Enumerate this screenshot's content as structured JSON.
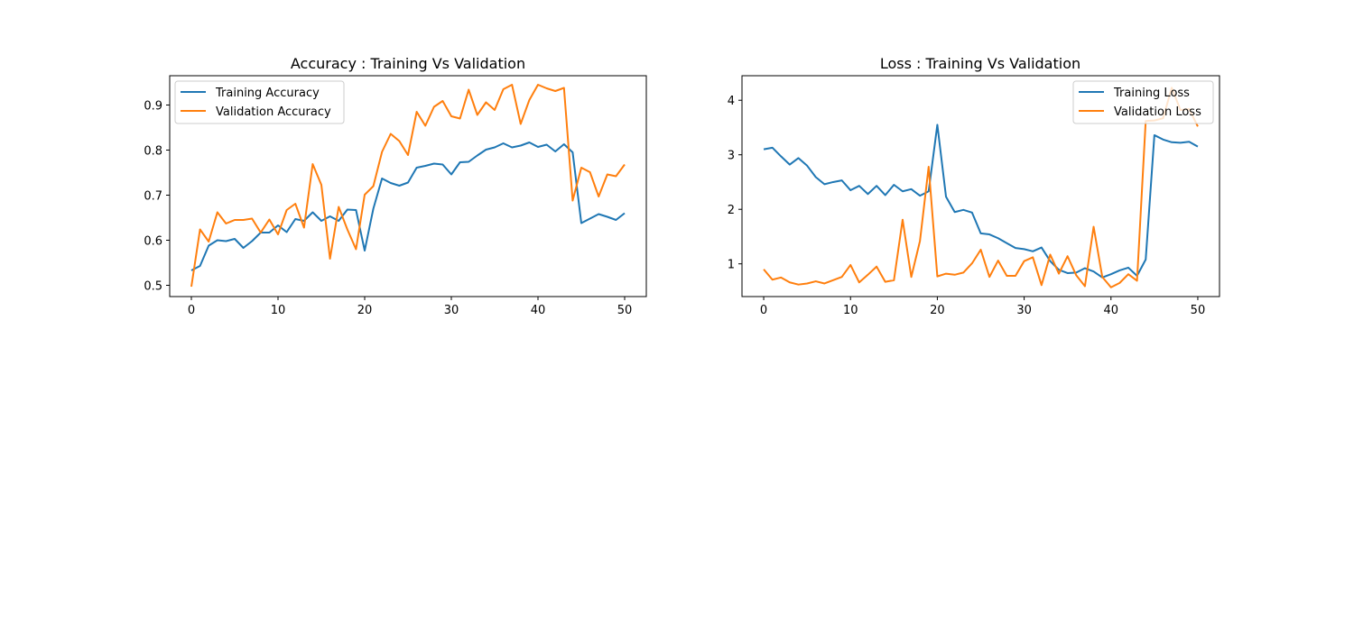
{
  "colors": {
    "training": "#1f77b4",
    "validation": "#ff7f0e"
  },
  "chart_data": [
    {
      "type": "line",
      "title": "Accuracy : Training Vs Validation",
      "xlabel": "",
      "ylabel": "",
      "xlim": [
        -2.5,
        52.5
      ],
      "ylim": [
        0.475,
        0.965
      ],
      "xticks": [
        0,
        10,
        20,
        30,
        40,
        50
      ],
      "yticks": [
        0.5,
        0.6,
        0.7,
        0.8,
        0.9
      ],
      "ytick_labels": [
        "0.5",
        "0.6",
        "0.7",
        "0.8",
        "0.9"
      ],
      "grid": false,
      "legend_position": "upper-left",
      "x": [
        0,
        1,
        2,
        3,
        4,
        5,
        6,
        7,
        8,
        9,
        10,
        11,
        12,
        13,
        14,
        15,
        16,
        17,
        18,
        19,
        20,
        21,
        22,
        23,
        24,
        25,
        26,
        27,
        28,
        29,
        30,
        31,
        32,
        33,
        34,
        35,
        36,
        37,
        38,
        39,
        40,
        41,
        42,
        43,
        44,
        45,
        46,
        47,
        48,
        49,
        50
      ],
      "series": [
        {
          "name": "Training Accuracy",
          "color": "#1f77b4",
          "values": [
            0.533,
            0.543,
            0.588,
            0.6,
            0.598,
            0.603,
            0.583,
            0.598,
            0.617,
            0.617,
            0.633,
            0.618,
            0.647,
            0.643,
            0.662,
            0.643,
            0.653,
            0.643,
            0.668,
            0.667,
            0.577,
            0.67,
            0.737,
            0.727,
            0.721,
            0.728,
            0.761,
            0.765,
            0.77,
            0.768,
            0.746,
            0.773,
            0.774,
            0.788,
            0.801,
            0.806,
            0.815,
            0.806,
            0.81,
            0.817,
            0.807,
            0.812,
            0.797,
            0.813,
            0.795,
            0.638,
            0.648,
            0.658,
            0.652,
            0.645,
            0.66
          ]
        },
        {
          "name": "Validation Accuracy",
          "color": "#ff7f0e",
          "values": [
            0.497,
            0.624,
            0.597,
            0.662,
            0.637,
            0.645,
            0.645,
            0.648,
            0.617,
            0.646,
            0.613,
            0.667,
            0.681,
            0.628,
            0.769,
            0.723,
            0.559,
            0.674,
            0.624,
            0.58,
            0.701,
            0.72,
            0.796,
            0.836,
            0.82,
            0.789,
            0.885,
            0.854,
            0.896,
            0.909,
            0.875,
            0.87,
            0.934,
            0.878,
            0.906,
            0.889,
            0.935,
            0.945,
            0.858,
            0.911,
            0.945,
            0.937,
            0.931,
            0.938,
            0.688,
            0.761,
            0.751,
            0.697,
            0.746,
            0.742,
            0.768
          ]
        }
      ]
    },
    {
      "type": "line",
      "title": "Loss : Training Vs Validation",
      "xlabel": "",
      "ylabel": "",
      "xlim": [
        -2.5,
        52.5
      ],
      "ylim": [
        0.4,
        4.45
      ],
      "xticks": [
        0,
        10,
        20,
        30,
        40,
        50
      ],
      "yticks": [
        1,
        2,
        3,
        4
      ],
      "ytick_labels": [
        "1",
        "2",
        "3",
        "4"
      ],
      "grid": false,
      "legend_position": "upper-right",
      "x": [
        0,
        1,
        2,
        3,
        4,
        5,
        6,
        7,
        8,
        9,
        10,
        11,
        12,
        13,
        14,
        15,
        16,
        17,
        18,
        19,
        20,
        21,
        22,
        23,
        24,
        25,
        26,
        27,
        28,
        29,
        30,
        31,
        32,
        33,
        34,
        35,
        36,
        37,
        38,
        39,
        40,
        41,
        42,
        43,
        44,
        45,
        46,
        47,
        48,
        49,
        50
      ],
      "series": [
        {
          "name": "Training Loss",
          "color": "#1f77b4",
          "values": [
            3.1,
            3.13,
            2.97,
            2.82,
            2.94,
            2.8,
            2.59,
            2.46,
            2.5,
            2.53,
            2.35,
            2.43,
            2.28,
            2.43,
            2.26,
            2.45,
            2.33,
            2.37,
            2.25,
            2.33,
            3.55,
            2.23,
            1.95,
            1.99,
            1.94,
            1.56,
            1.54,
            1.47,
            1.38,
            1.29,
            1.27,
            1.23,
            1.3,
            1.05,
            0.89,
            0.83,
            0.84,
            0.92,
            0.86,
            0.75,
            0.81,
            0.88,
            0.93,
            0.78,
            1.08,
            3.36,
            3.28,
            3.23,
            3.22,
            3.24,
            3.15
          ]
        },
        {
          "name": "Validation Loss",
          "color": "#ff7f0e",
          "values": [
            0.9,
            0.71,
            0.75,
            0.66,
            0.62,
            0.64,
            0.68,
            0.64,
            0.7,
            0.76,
            0.98,
            0.66,
            0.8,
            0.95,
            0.67,
            0.7,
            1.81,
            0.76,
            1.42,
            2.78,
            0.77,
            0.82,
            0.8,
            0.84,
            1.01,
            1.26,
            0.76,
            1.06,
            0.78,
            0.78,
            1.05,
            1.12,
            0.61,
            1.17,
            0.82,
            1.14,
            0.79,
            0.59,
            1.68,
            0.76,
            0.57,
            0.65,
            0.81,
            0.69,
            3.62,
            3.63,
            3.67,
            4.23,
            3.82,
            3.84,
            3.52
          ]
        }
      ]
    }
  ]
}
